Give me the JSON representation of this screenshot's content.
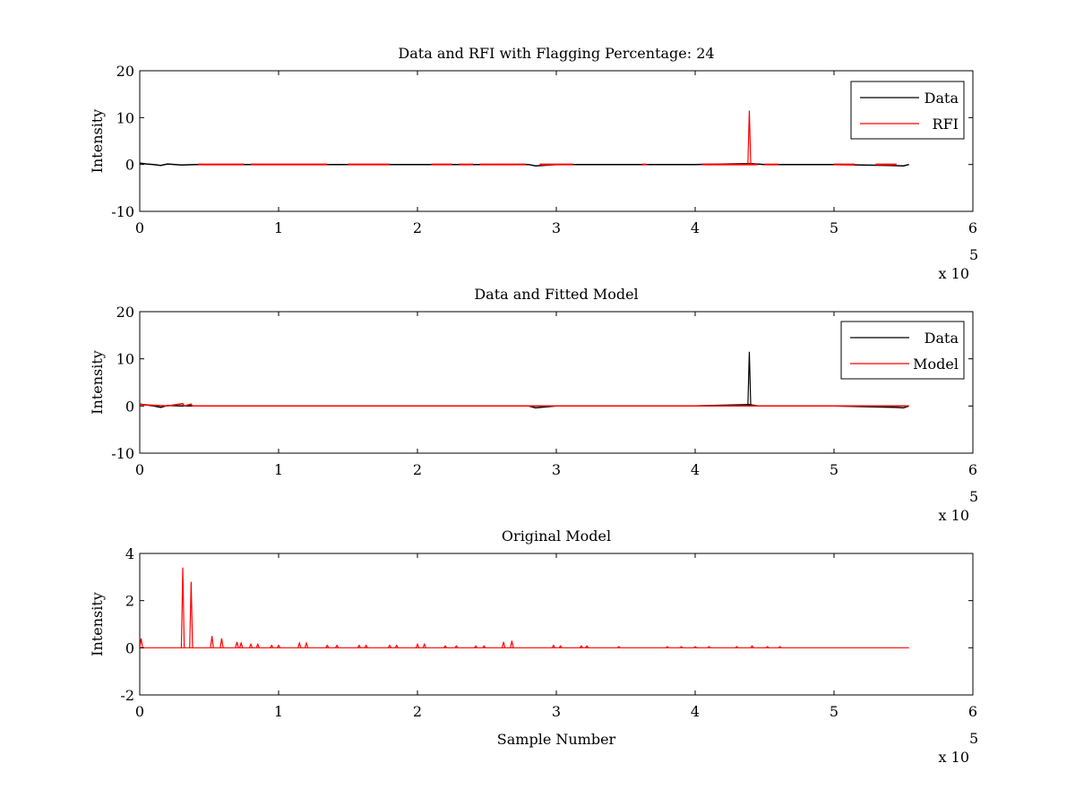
{
  "chart_data": [
    {
      "type": "line",
      "title": "Data and RFI with Flagging Percentage: 24",
      "xlabel": "",
      "ylabel": "Intensity",
      "xlim": [
        0,
        6
      ],
      "ylim": [
        -10,
        20
      ],
      "x_ticks": [
        "0",
        "1",
        "2",
        "3",
        "4",
        "5",
        "6"
      ],
      "y_ticks": [
        "-10",
        "0",
        "10",
        "20"
      ],
      "x_multiplier": {
        "base": "x 10",
        "exponent": "5"
      },
      "legend": {
        "placement": "top-right",
        "entries": [
          "Data",
          "RFI"
        ]
      },
      "series": [
        {
          "name": "Data",
          "color": "#000000",
          "x": [
            0,
            0.05,
            0.1,
            0.15,
            0.2,
            0.3,
            0.4,
            0.6,
            0.8,
            1.0,
            1.5,
            2.0,
            2.5,
            2.8,
            2.85,
            3.0,
            3.5,
            4.0,
            4.4,
            4.5,
            5.0,
            5.4,
            5.5,
            5.54
          ],
          "y": [
            0.3,
            0.1,
            0.0,
            -0.2,
            0.1,
            -0.1,
            0.0,
            0.0,
            0.0,
            0.0,
            0.0,
            0.0,
            0.0,
            0.0,
            -0.3,
            0.0,
            0.0,
            0.0,
            0.2,
            0.0,
            0.0,
            -0.2,
            -0.3,
            0.0
          ]
        },
        {
          "name": "RFI",
          "color": "#ff0000",
          "segments": [
            [
              0.42,
              0.75
            ],
            [
              0.8,
              1.35
            ],
            [
              1.5,
              1.8
            ],
            [
              2.1,
              2.25
            ],
            [
              2.3,
              2.4
            ],
            [
              2.45,
              2.78
            ],
            [
              2.88,
              3.12
            ],
            [
              3.62,
              3.65
            ],
            [
              4.05,
              4.45
            ],
            [
              4.5,
              4.6
            ],
            [
              5.0,
              5.15
            ],
            [
              5.3,
              5.45
            ]
          ],
          "spikes": [
            {
              "x": 4.39,
              "y": 11.5
            }
          ]
        }
      ]
    },
    {
      "type": "line",
      "title": "Data and Fitted Model",
      "xlabel": "",
      "ylabel": "Intensity",
      "xlim": [
        0,
        6
      ],
      "ylim": [
        -10,
        20
      ],
      "x_ticks": [
        "0",
        "1",
        "2",
        "3",
        "4",
        "5",
        "6"
      ],
      "y_ticks": [
        "-10",
        "0",
        "10",
        "20"
      ],
      "x_multiplier": {
        "base": "x 10",
        "exponent": "5"
      },
      "legend": {
        "placement": "top-right",
        "entries": [
          "Data",
          "Model"
        ]
      },
      "series": [
        {
          "name": "Data",
          "color": "#000000",
          "x": [
            0,
            0.05,
            0.1,
            0.15,
            0.2,
            0.3,
            0.4,
            0.6,
            1.0,
            2.0,
            2.8,
            2.85,
            3.0,
            3.62,
            4.0,
            4.39,
            4.45,
            5.0,
            5.45,
            5.5,
            5.54
          ],
          "y": [
            0.4,
            0.2,
            0.0,
            -0.3,
            0.1,
            0.0,
            0.0,
            0.0,
            0.0,
            0.0,
            0.0,
            -0.4,
            0.0,
            0.0,
            0.0,
            0.3,
            0.0,
            0.0,
            -0.3,
            -0.4,
            0.0
          ],
          "spikes": [
            {
              "x": 4.39,
              "y": 11.5
            }
          ]
        },
        {
          "name": "Model",
          "color": "#ff0000",
          "x": [
            0,
            0.2,
            0.31,
            0.32,
            0.37,
            0.38,
            1.0,
            2.0,
            3.0,
            4.0,
            5.0,
            5.54
          ],
          "y": [
            0.3,
            0.0,
            0.5,
            0.0,
            0.4,
            0.0,
            0.0,
            0.0,
            0.0,
            0.0,
            0.0,
            0.0
          ]
        }
      ]
    },
    {
      "type": "line",
      "title": "Original Model",
      "xlabel": "Sample Number",
      "ylabel": "Intensity",
      "xlim": [
        0,
        6
      ],
      "ylim": [
        -2,
        4
      ],
      "x_ticks": [
        "0",
        "1",
        "2",
        "3",
        "4",
        "5",
        "6"
      ],
      "y_ticks": [
        "-2",
        "0",
        "2",
        "4"
      ],
      "x_multiplier": {
        "base": "x 10",
        "exponent": "5"
      },
      "series": [
        {
          "name": "Original Model",
          "color": "#ff0000",
          "baseline": 0,
          "x_end": 5.54,
          "spikes": [
            {
              "x": 0.01,
              "y": 0.4
            },
            {
              "x": 0.31,
              "y": 3.4
            },
            {
              "x": 0.37,
              "y": 2.8
            },
            {
              "x": 0.52,
              "y": 0.5
            },
            {
              "x": 0.59,
              "y": 0.4
            },
            {
              "x": 0.7,
              "y": 0.25
            },
            {
              "x": 0.73,
              "y": 0.2
            },
            {
              "x": 0.8,
              "y": 0.15
            },
            {
              "x": 0.85,
              "y": 0.15
            },
            {
              "x": 0.95,
              "y": 0.1
            },
            {
              "x": 1.0,
              "y": 0.1
            },
            {
              "x": 1.15,
              "y": 0.2
            },
            {
              "x": 1.2,
              "y": 0.2
            },
            {
              "x": 1.35,
              "y": 0.1
            },
            {
              "x": 1.42,
              "y": 0.1
            },
            {
              "x": 1.58,
              "y": 0.1
            },
            {
              "x": 1.63,
              "y": 0.1
            },
            {
              "x": 1.8,
              "y": 0.1
            },
            {
              "x": 1.85,
              "y": 0.1
            },
            {
              "x": 2.0,
              "y": 0.15
            },
            {
              "x": 2.05,
              "y": 0.15
            },
            {
              "x": 2.2,
              "y": 0.08
            },
            {
              "x": 2.28,
              "y": 0.08
            },
            {
              "x": 2.42,
              "y": 0.08
            },
            {
              "x": 2.48,
              "y": 0.08
            },
            {
              "x": 2.62,
              "y": 0.25
            },
            {
              "x": 2.68,
              "y": 0.3
            },
            {
              "x": 2.98,
              "y": 0.1
            },
            {
              "x": 3.03,
              "y": 0.08
            },
            {
              "x": 3.18,
              "y": 0.08
            },
            {
              "x": 3.22,
              "y": 0.08
            },
            {
              "x": 3.45,
              "y": 0.05
            },
            {
              "x": 3.8,
              "y": 0.05
            },
            {
              "x": 3.9,
              "y": 0.05
            },
            {
              "x": 4.0,
              "y": 0.05
            },
            {
              "x": 4.1,
              "y": 0.05
            },
            {
              "x": 4.3,
              "y": 0.05
            },
            {
              "x": 4.41,
              "y": 0.08
            },
            {
              "x": 4.52,
              "y": 0.05
            },
            {
              "x": 4.61,
              "y": 0.05
            }
          ]
        }
      ]
    }
  ]
}
